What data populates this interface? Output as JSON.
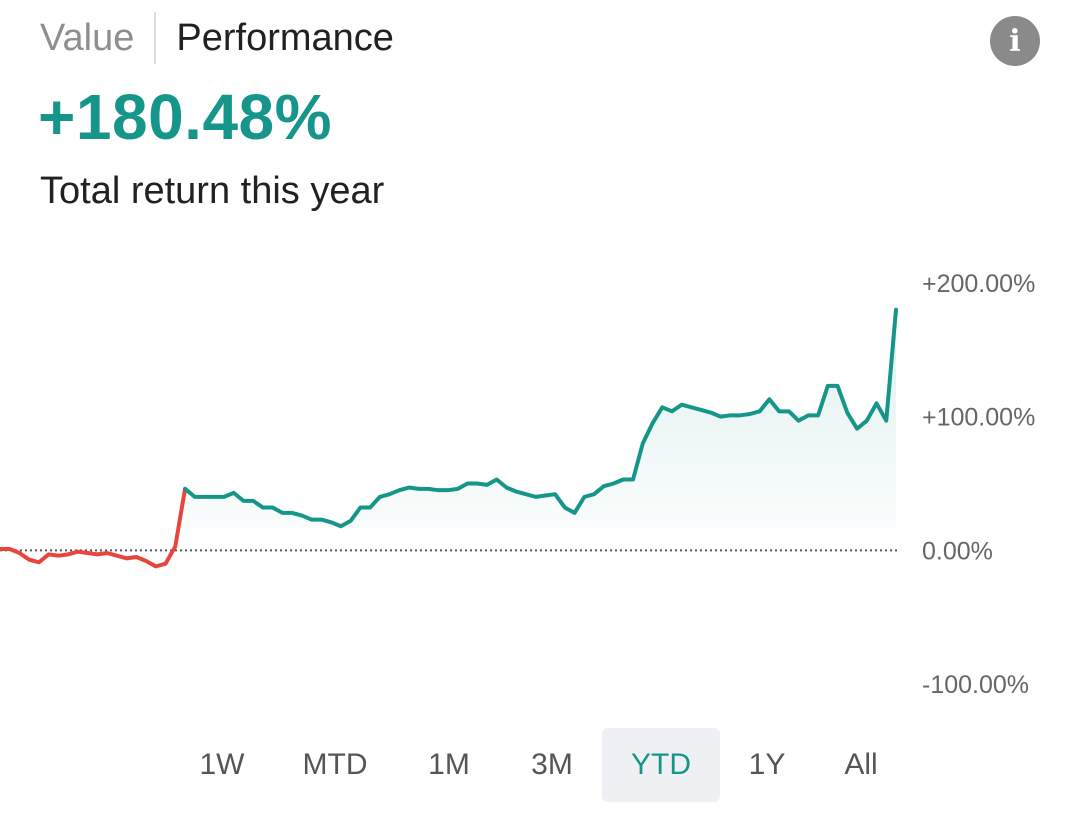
{
  "header": {
    "tabs": [
      {
        "label": "Value",
        "active": false
      },
      {
        "label": "Performance",
        "active": true
      }
    ],
    "info_icon": "info-icon"
  },
  "summary": {
    "value": "+180.48%",
    "caption": "Total return this year"
  },
  "colors": {
    "positive": "#16968a",
    "negative": "#e8453c",
    "zero_line": "#555555",
    "axis_label": "#666666",
    "range_selected_bg": "#eef0f4"
  },
  "range_selector": {
    "options": [
      "1W",
      "MTD",
      "1M",
      "3M",
      "YTD",
      "1Y",
      "All"
    ],
    "selected": "YTD"
  },
  "chart_data": {
    "type": "area",
    "title": "",
    "xlabel": "",
    "ylabel": "",
    "y_unit": "%",
    "ylim": [
      -100,
      200
    ],
    "y_ticks": [
      200,
      100,
      0,
      -100
    ],
    "y_tick_labels": [
      "+200.00%",
      "+100.00%",
      "0.00%",
      "-100.00%"
    ],
    "zero_line": "dotted",
    "grid": false,
    "legend": "none",
    "series": [
      {
        "values": [
          1,
          1,
          -2,
          -7,
          -9,
          -3,
          -4,
          -3,
          -1,
          -2,
          -3,
          -2,
          -4,
          -6,
          -5,
          -8,
          -12,
          -10,
          3,
          46,
          40,
          40,
          40,
          40,
          43,
          37,
          37,
          32,
          32,
          28,
          28,
          26,
          23,
          23,
          21,
          18,
          22,
          32,
          32,
          40,
          42,
          45,
          47,
          46,
          46,
          45,
          45,
          46,
          50,
          50,
          49,
          53,
          47,
          44,
          42,
          40,
          41,
          42,
          32,
          28,
          40,
          42,
          48,
          50,
          53,
          53,
          80,
          95,
          107,
          104,
          109,
          107,
          105,
          103,
          100,
          101,
          101,
          102,
          104,
          113,
          104,
          104,
          97,
          101,
          101,
          123,
          123,
          103,
          91,
          97,
          110,
          97,
          180
        ]
      }
    ]
  }
}
